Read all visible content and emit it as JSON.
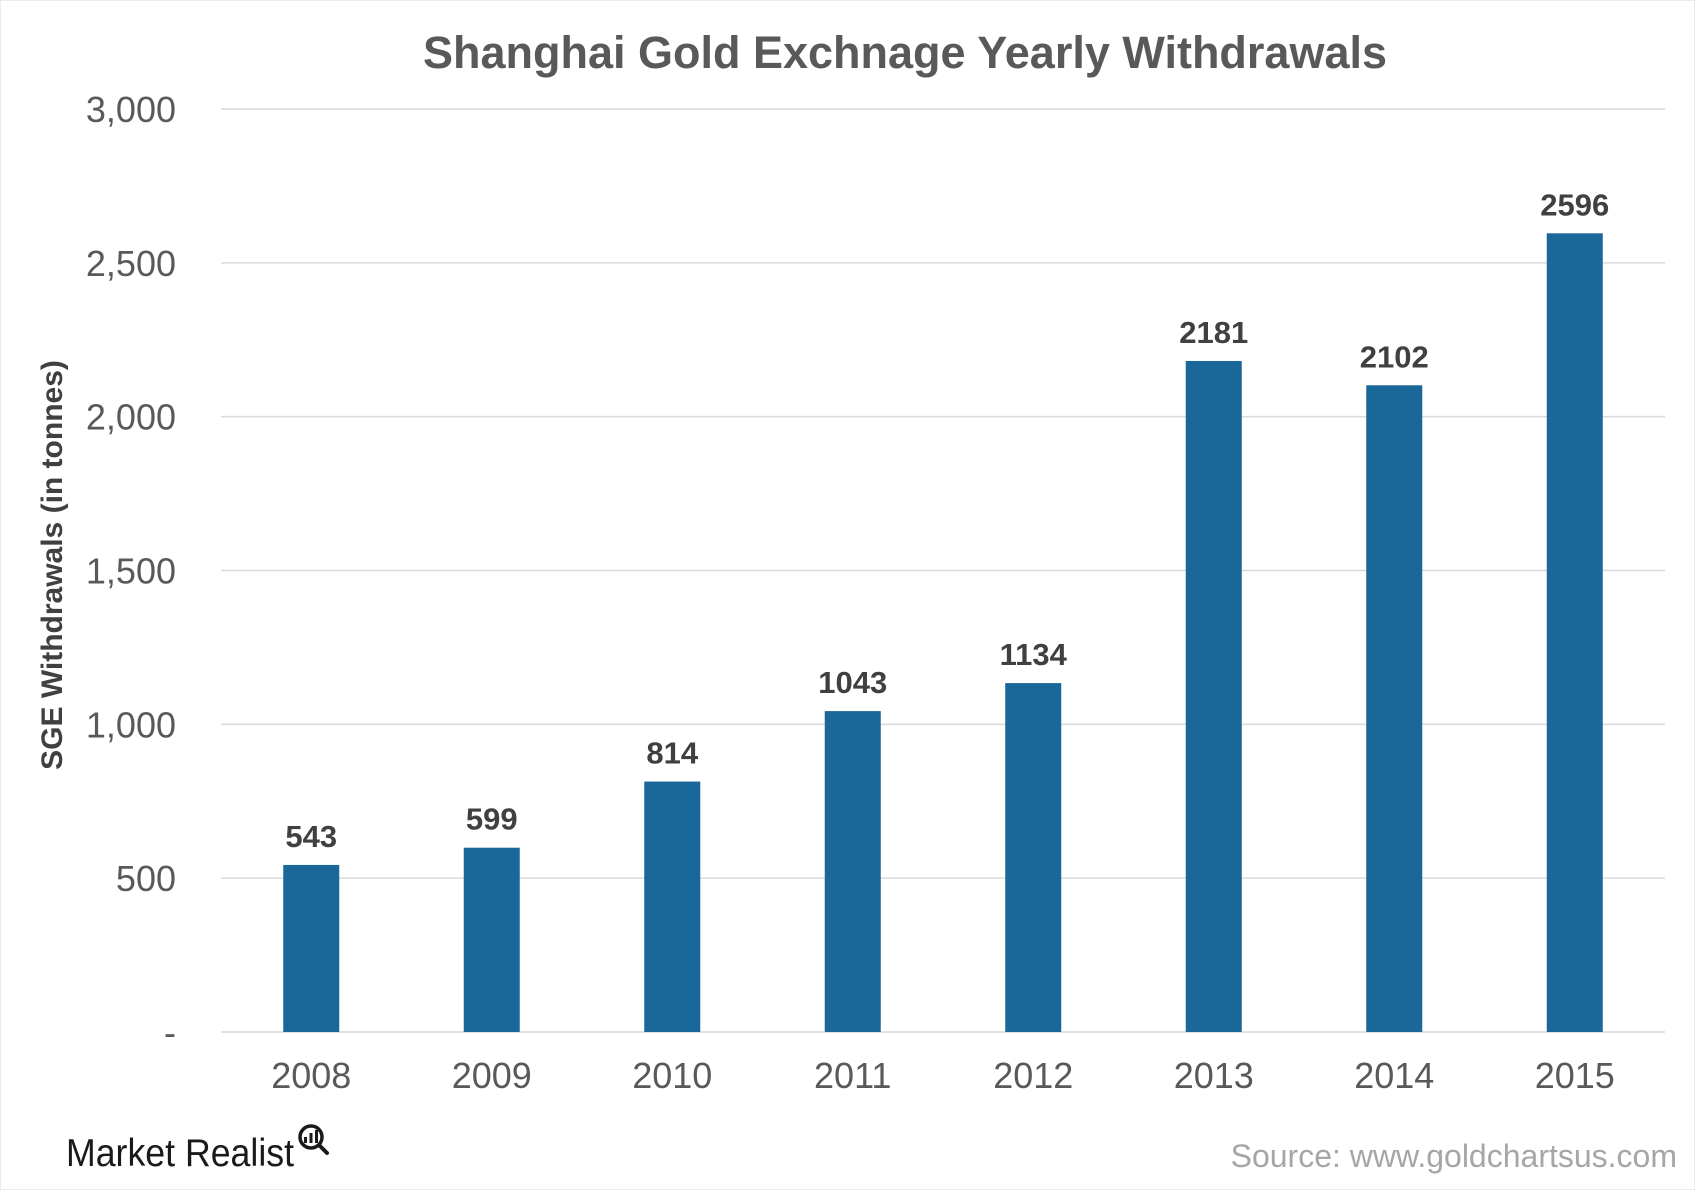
{
  "chart_data": {
    "type": "bar",
    "title": "Shanghai Gold Exchnage Yearly Withdrawals",
    "xlabel": "",
    "ylabel": "SGE Withdrawals (in tonnes)",
    "categories": [
      "2008",
      "2009",
      "2010",
      "2011",
      "2012",
      "2013",
      "2014",
      "2015"
    ],
    "values": [
      543,
      599,
      814,
      1043,
      1134,
      2181,
      2102,
      2596
    ],
    "ylim": [
      0,
      3000
    ],
    "yticks": [
      0,
      500,
      1000,
      1500,
      2000,
      2500,
      3000
    ],
    "ytick_labels": [
      "-",
      "500",
      "1,000",
      "1,500",
      "2,000",
      "2,500",
      "3,000"
    ],
    "data_labels": true,
    "bar_color": "#1a6799",
    "grid": true,
    "legend": "none"
  },
  "footer": {
    "source": "Source: www.goldchartsus.com",
    "logo_text": "Market Realist"
  }
}
